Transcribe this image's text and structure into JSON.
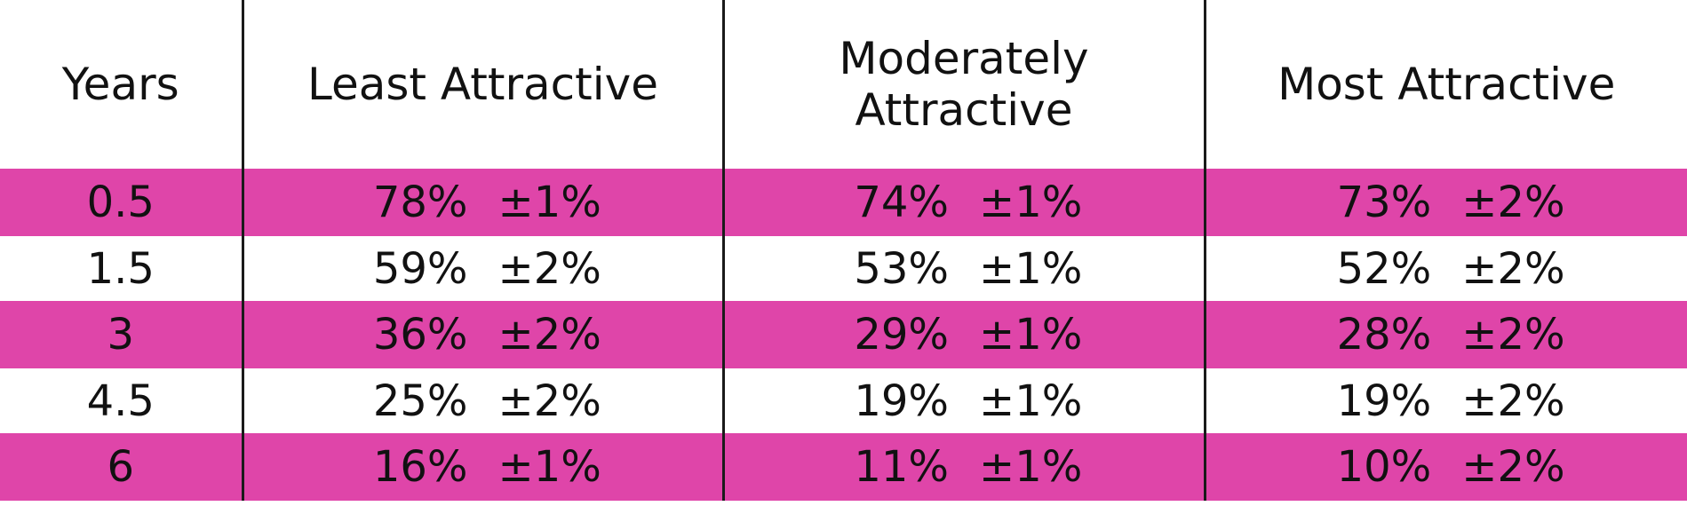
{
  "table": {
    "headers": {
      "years": "Years",
      "least": "Least Attractive",
      "moderate_line1": "Moderately",
      "moderate_line2": "Attractive",
      "most": "Most Attractive"
    },
    "highlight_color": "#df45a9",
    "rows": [
      {
        "years": "0.5",
        "least": {
          "pct": "78%",
          "err": "±1%"
        },
        "moderate": {
          "pct": "74%",
          "err": "±1%"
        },
        "most": {
          "pct": "73%",
          "err": "±2%"
        },
        "highlight": true
      },
      {
        "years": "1.5",
        "least": {
          "pct": "59%",
          "err": "±2%"
        },
        "moderate": {
          "pct": "53%",
          "err": "±1%"
        },
        "most": {
          "pct": "52%",
          "err": "±2%"
        },
        "highlight": false
      },
      {
        "years": "3",
        "least": {
          "pct": "36%",
          "err": "±2%"
        },
        "moderate": {
          "pct": "29%",
          "err": "±1%"
        },
        "most": {
          "pct": "28%",
          "err": "±2%"
        },
        "highlight": true
      },
      {
        "years": "4.5",
        "least": {
          "pct": "25%",
          "err": "±2%"
        },
        "moderate": {
          "pct": "19%",
          "err": "±1%"
        },
        "most": {
          "pct": "19%",
          "err": "±2%"
        },
        "highlight": false
      },
      {
        "years": "6",
        "least": {
          "pct": "16%",
          "err": "±1%"
        },
        "moderate": {
          "pct": "11%",
          "err": "±1%"
        },
        "most": {
          "pct": "10%",
          "err": "±2%"
        },
        "highlight": true
      }
    ]
  }
}
